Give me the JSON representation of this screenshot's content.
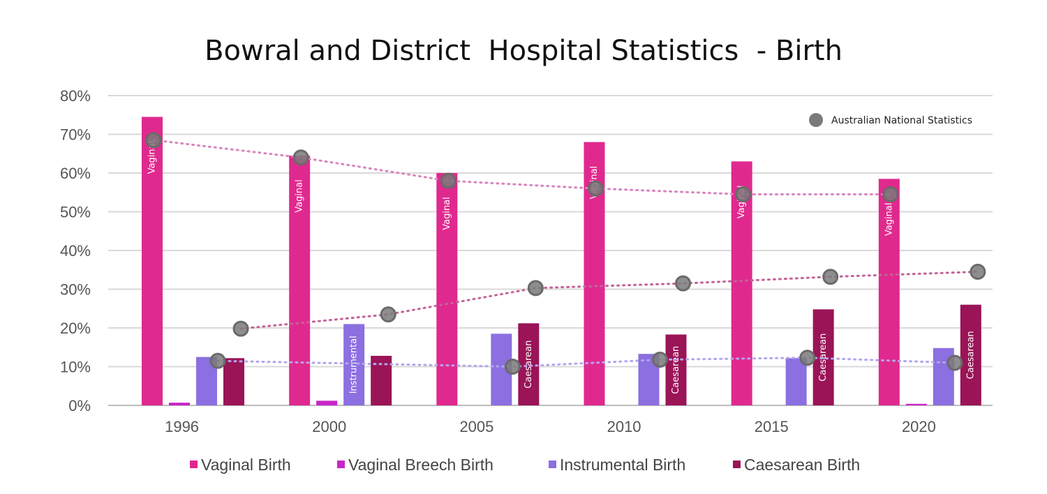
{
  "chart_data": {
    "type": "bar",
    "title": "Bowral and District  Hospital Statistics  - Birth",
    "categories": [
      "1996",
      "2000",
      "2005",
      "2010",
      "2015",
      "2020"
    ],
    "y_ticks": [
      "0%",
      "10%",
      "20%",
      "30%",
      "40%",
      "50%",
      "60%",
      "70%",
      "80%"
    ],
    "ylim": [
      0,
      80
    ],
    "grid": true,
    "series": [
      {
        "name": "Vaginal Birth",
        "color": "#E0298E",
        "values": [
          74.5,
          64.5,
          60,
          68,
          63,
          58.5
        ]
      },
      {
        "name": "Vaginal Breech Birth",
        "color": "#C825C8",
        "values": [
          0.7,
          1.2,
          0,
          0,
          0,
          0.4
        ]
      },
      {
        "name": "Instrumental Birth",
        "color": "#8C6FE0",
        "values": [
          12.5,
          21,
          18.5,
          13.3,
          12.2,
          14.8
        ]
      },
      {
        "name": "Caesarean Birth",
        "color": "#9A1457",
        "values": [
          12.2,
          12.8,
          21.2,
          18.3,
          24.8,
          26
        ]
      }
    ],
    "bar_labels": [
      {
        "series": 0,
        "category": 0,
        "text": "Vaginal"
      },
      {
        "series": 0,
        "category": 1,
        "text": "Vaginal"
      },
      {
        "series": 0,
        "category": 2,
        "text": "Vaginal"
      },
      {
        "series": 0,
        "category": 3,
        "text": "Vaginal"
      },
      {
        "series": 0,
        "category": 4,
        "text": "Vaginal"
      },
      {
        "series": 0,
        "category": 5,
        "text": "Vaginal"
      },
      {
        "series": 2,
        "category": 1,
        "text": "Instrumental"
      },
      {
        "series": 3,
        "category": 2,
        "text": "Caesarean"
      },
      {
        "series": 3,
        "category": 3,
        "text": "Caesarean"
      },
      {
        "series": 3,
        "category": 4,
        "text": "Caesarean"
      },
      {
        "series": 3,
        "category": 5,
        "text": "Caesarean"
      }
    ],
    "national_statistics": {
      "name": "Australian National Statistics",
      "marker_color": "#7A7A7A",
      "series": [
        {
          "compares_to": "Vaginal Birth",
          "bar_series": 0,
          "trend_color": "#D985BE",
          "values": [
            68.5,
            64,
            58,
            56,
            54.5,
            54.5
          ]
        },
        {
          "compares_to": "Instrumental Birth",
          "bar_series": 2,
          "trend_color": "#B3A6EC",
          "values": [
            11.5,
            null,
            10,
            11.8,
            12.3,
            11
          ]
        },
        {
          "compares_to": "Caesarean Birth",
          "bar_series": 3,
          "trend_color": "#C26399",
          "values": [
            19.8,
            23.5,
            30.3,
            31.5,
            33.2,
            34.5
          ]
        }
      ]
    },
    "legend_position": "bottom"
  }
}
